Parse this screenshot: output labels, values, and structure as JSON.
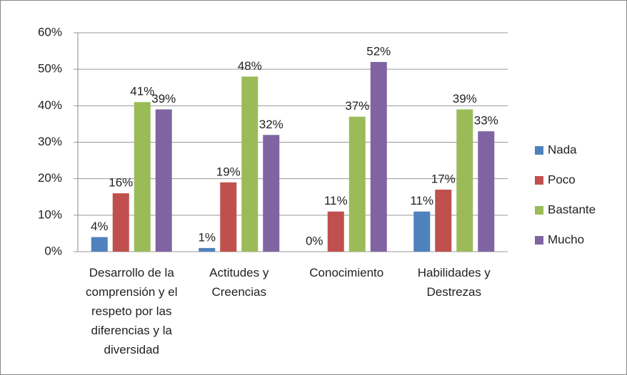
{
  "chart_data": {
    "type": "bar",
    "categories": [
      "Desarrollo de la comprensión y el respeto por las diferencias y la diversidad",
      "Actitudes y Creencias",
      "Conocimiento",
      "Habilidades y Destrezas"
    ],
    "series": [
      {
        "name": "Nada",
        "color": "#4f81bd",
        "values": [
          4,
          1,
          0,
          11
        ],
        "value_labels": [
          "4%",
          "1%",
          "0%",
          "11%"
        ]
      },
      {
        "name": "Poco",
        "color": "#c0504d",
        "values": [
          16,
          19,
          11,
          17
        ],
        "value_labels": [
          "16%",
          "19%",
          "11%",
          "17%"
        ]
      },
      {
        "name": "Bastante",
        "color": "#9bbb59",
        "values": [
          41,
          48,
          37,
          39
        ],
        "value_labels": [
          "41%",
          "48%",
          "37%",
          "39%"
        ]
      },
      {
        "name": "Mucho",
        "color": "#8064a2",
        "values": [
          39,
          32,
          52,
          33
        ],
        "value_labels": [
          "39%",
          "32%",
          "52%",
          "33%"
        ]
      }
    ],
    "ylim": [
      0,
      60
    ],
    "yticks": [
      {
        "value": 0,
        "label": "0%"
      },
      {
        "value": 10,
        "label": "10%"
      },
      {
        "value": 20,
        "label": "20%"
      },
      {
        "value": 30,
        "label": "30%"
      },
      {
        "value": 40,
        "label": "40%"
      },
      {
        "value": 50,
        "label": "50%"
      },
      {
        "value": 60,
        "label": "60%"
      }
    ],
    "grid": true,
    "legend": "right"
  }
}
